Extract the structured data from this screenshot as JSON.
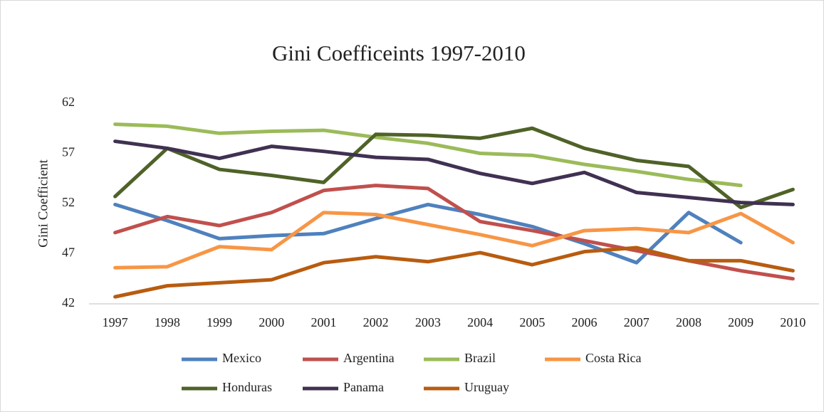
{
  "chart_data": {
    "type": "line",
    "title": "Gini Coefficeints 1997-2010",
    "y_label": "Gini Coefficient",
    "categories": [
      "1997",
      "1998",
      "1999",
      "2000",
      "2001",
      "2002",
      "2003",
      "2004",
      "2005",
      "2006",
      "2007",
      "2008",
      "2009",
      "2010"
    ],
    "ylim": [
      42,
      62
    ],
    "yticks": [
      42,
      47,
      52,
      57,
      62
    ],
    "grid": false,
    "legend": "bottom",
    "series": [
      {
        "name": "Mexico",
        "color": "#4f81bd",
        "values": [
          51.9,
          50.3,
          48.5,
          48.8,
          49.0,
          50.5,
          51.9,
          50.9,
          49.7,
          48.0,
          46.1,
          51.1,
          48.1,
          null
        ]
      },
      {
        "name": "Argentina",
        "color": "#c0504d",
        "values": [
          49.1,
          50.7,
          49.8,
          51.1,
          53.3,
          53.8,
          53.5,
          50.2,
          49.3,
          48.3,
          47.3,
          46.3,
          45.3,
          44.5
        ]
      },
      {
        "name": "Brazil",
        "color": "#9bbb59",
        "values": [
          59.9,
          59.7,
          59.0,
          59.2,
          59.3,
          58.6,
          58.0,
          57.0,
          56.8,
          55.9,
          55.2,
          54.4,
          53.8,
          null
        ]
      },
      {
        "name": "Costa Rica",
        "color": "#f79646",
        "values": [
          45.6,
          45.7,
          47.7,
          47.4,
          51.1,
          50.9,
          49.9,
          48.9,
          47.8,
          49.3,
          49.5,
          49.1,
          51.0,
          48.1
        ]
      },
      {
        "name": "Honduras",
        "color": "#4f6228",
        "values": [
          52.7,
          57.5,
          55.4,
          54.8,
          54.1,
          58.9,
          58.8,
          58.5,
          59.5,
          57.5,
          56.3,
          55.7,
          51.6,
          53.4
        ]
      },
      {
        "name": "Panama",
        "color": "#403152",
        "values": [
          58.2,
          57.5,
          56.5,
          57.7,
          57.2,
          56.6,
          56.4,
          55.0,
          54.0,
          55.1,
          53.1,
          52.6,
          52.1,
          51.9
        ]
      },
      {
        "name": "Uruguay",
        "color": "#b85c10",
        "values": [
          42.7,
          43.8,
          44.1,
          44.4,
          46.1,
          46.7,
          46.2,
          47.1,
          45.9,
          47.2,
          47.6,
          46.3,
          46.3,
          45.3
        ]
      }
    ]
  }
}
